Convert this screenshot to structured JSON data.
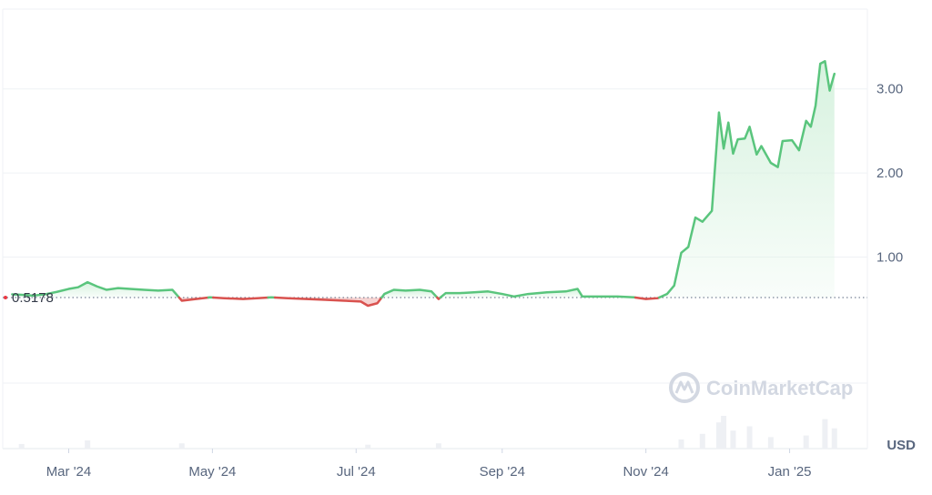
{
  "chart_data": {
    "type": "line",
    "unit": "USD",
    "baseline": {
      "value": 0.5178,
      "label": "0.5178"
    },
    "y_ticks": [
      {
        "value": 1.0,
        "label": "1.00"
      },
      {
        "value": 2.0,
        "label": "2.00"
      },
      {
        "value": 3.0,
        "label": "3.00"
      }
    ],
    "ylim": [
      -1.28,
      3.95
    ],
    "x_ticks": [
      {
        "date": "2024-03-01",
        "label": "Mar '24"
      },
      {
        "date": "2024-05-01",
        "label": "May '24"
      },
      {
        "date": "2024-07-01",
        "label": "Jul '24"
      },
      {
        "date": "2024-09-01",
        "label": "Sep '24"
      },
      {
        "date": "2024-11-01",
        "label": "Nov '24"
      },
      {
        "date": "2025-01-01",
        "label": "Jan '25"
      }
    ],
    "xlim": [
      "2024-02-02",
      "2025-02-03"
    ],
    "grid": true,
    "colors": {
      "up": "#16c784",
      "down": "#ea3943",
      "line_up": "#5ac57d",
      "line_down": "#d9524f",
      "fill_up": "#d7f2df",
      "fill_down": "#f4c9c8"
    },
    "series": [
      {
        "values": [
          [
            "2024-02-06",
            0.556
          ],
          [
            "2024-02-10",
            0.55
          ],
          [
            "2024-02-15",
            0.54
          ],
          [
            "2024-02-20",
            0.556
          ],
          [
            "2024-02-25",
            0.585
          ],
          [
            "2024-03-01",
            0.62
          ],
          [
            "2024-03-05",
            0.64
          ],
          [
            "2024-03-09",
            0.7
          ],
          [
            "2024-03-13",
            0.65
          ],
          [
            "2024-03-17",
            0.61
          ],
          [
            "2024-03-22",
            0.63
          ],
          [
            "2024-03-27",
            0.62
          ],
          [
            "2024-04-02",
            0.61
          ],
          [
            "2024-04-08",
            0.6
          ],
          [
            "2024-04-14",
            0.61
          ],
          [
            "2024-04-18",
            0.48
          ],
          [
            "2024-04-24",
            0.5
          ],
          [
            "2024-04-30",
            0.52
          ],
          [
            "2024-05-06",
            0.51
          ],
          [
            "2024-05-14",
            0.5
          ],
          [
            "2024-05-20",
            0.51
          ],
          [
            "2024-05-26",
            0.52
          ],
          [
            "2024-06-02",
            0.51
          ],
          [
            "2024-06-10",
            0.5
          ],
          [
            "2024-06-18",
            0.49
          ],
          [
            "2024-06-26",
            0.48
          ],
          [
            "2024-07-03",
            0.47
          ],
          [
            "2024-07-06",
            0.42
          ],
          [
            "2024-07-10",
            0.45
          ],
          [
            "2024-07-13",
            0.56
          ],
          [
            "2024-07-17",
            0.61
          ],
          [
            "2024-07-22",
            0.6
          ],
          [
            "2024-07-28",
            0.61
          ],
          [
            "2024-08-02",
            0.59
          ],
          [
            "2024-08-05",
            0.5
          ],
          [
            "2024-08-08",
            0.57
          ],
          [
            "2024-08-14",
            0.57
          ],
          [
            "2024-08-20",
            0.58
          ],
          [
            "2024-08-26",
            0.59
          ],
          [
            "2024-09-01",
            0.56
          ],
          [
            "2024-09-06",
            0.53
          ],
          [
            "2024-09-12",
            0.56
          ],
          [
            "2024-09-20",
            0.58
          ],
          [
            "2024-09-28",
            0.59
          ],
          [
            "2024-10-03",
            0.62
          ],
          [
            "2024-10-05",
            0.53
          ],
          [
            "2024-10-12",
            0.53
          ],
          [
            "2024-10-20",
            0.53
          ],
          [
            "2024-10-27",
            0.52
          ],
          [
            "2024-11-01",
            0.5
          ],
          [
            "2024-11-06",
            0.51
          ],
          [
            "2024-11-10",
            0.56
          ],
          [
            "2024-11-13",
            0.66
          ],
          [
            "2024-11-16",
            1.05
          ],
          [
            "2024-11-19",
            1.12
          ],
          [
            "2024-11-22",
            1.47
          ],
          [
            "2024-11-25",
            1.42
          ],
          [
            "2024-11-29",
            1.55
          ],
          [
            "2024-12-02",
            2.72
          ],
          [
            "2024-12-04",
            2.29
          ],
          [
            "2024-12-06",
            2.6
          ],
          [
            "2024-12-08",
            2.23
          ],
          [
            "2024-12-10",
            2.4
          ],
          [
            "2024-12-13",
            2.41
          ],
          [
            "2024-12-15",
            2.55
          ],
          [
            "2024-12-18",
            2.22
          ],
          [
            "2024-12-20",
            2.32
          ],
          [
            "2024-12-24",
            2.12
          ],
          [
            "2024-12-27",
            2.07
          ],
          [
            "2024-12-29",
            2.38
          ],
          [
            "2025-01-02",
            2.39
          ],
          [
            "2025-01-05",
            2.27
          ],
          [
            "2025-01-08",
            2.62
          ],
          [
            "2025-01-10",
            2.55
          ],
          [
            "2025-01-12",
            2.8
          ],
          [
            "2025-01-14",
            3.3
          ],
          [
            "2025-01-16",
            3.33
          ],
          [
            "2025-01-18",
            2.98
          ],
          [
            "2025-01-20",
            3.18
          ]
        ]
      }
    ],
    "volume": [
      [
        "2024-02-10",
        0.14
      ],
      [
        "2024-03-09",
        0.25
      ],
      [
        "2024-04-18",
        0.16
      ],
      [
        "2024-07-06",
        0.12
      ],
      [
        "2024-08-05",
        0.16
      ],
      [
        "2024-11-16",
        0.28
      ],
      [
        "2024-11-25",
        0.45
      ],
      [
        "2024-12-02",
        0.8
      ],
      [
        "2024-12-04",
        1.0
      ],
      [
        "2024-12-08",
        0.55
      ],
      [
        "2024-12-15",
        0.68
      ],
      [
        "2024-12-24",
        0.35
      ],
      [
        "2025-01-08",
        0.4
      ],
      [
        "2025-01-16",
        0.9
      ],
      [
        "2025-01-20",
        0.62
      ]
    ]
  },
  "watermark": "CoinMarketCap"
}
